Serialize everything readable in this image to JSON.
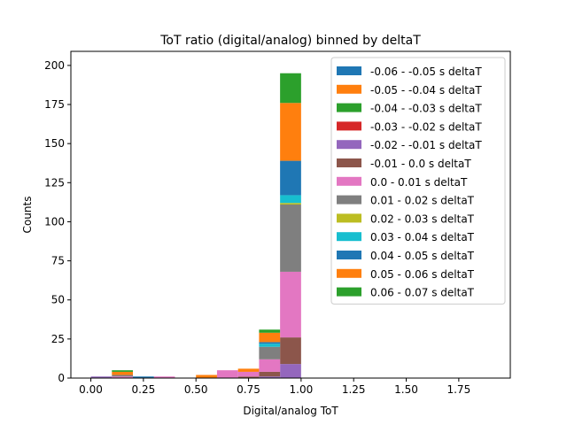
{
  "chart_data": {
    "type": "bar",
    "stacked": true,
    "title": "ToT ratio (digital/analog) binned by deltaT",
    "xlabel": "Digital/analog ToT",
    "ylabel": "Counts",
    "xlim": [
      -0.095,
      1.995
    ],
    "ylim": [
      0,
      209
    ],
    "xticks": [
      0.0,
      0.25,
      0.5,
      0.75,
      1.0,
      1.25,
      1.5,
      1.75
    ],
    "xtick_labels": [
      "0.00",
      "0.25",
      "0.50",
      "0.75",
      "1.00",
      "1.25",
      "1.50",
      "1.75"
    ],
    "yticks": [
      0,
      25,
      50,
      75,
      100,
      125,
      150,
      175,
      200
    ],
    "ytick_labels": [
      "0",
      "25",
      "50",
      "75",
      "100",
      "125",
      "150",
      "175",
      "200"
    ],
    "grid": false,
    "legend_position": "top-right",
    "bin_edges": [
      0.0,
      0.1,
      0.2,
      0.3,
      0.4,
      0.5,
      0.6,
      0.7,
      0.8,
      0.9,
      1.0,
      1.1,
      1.2,
      1.3,
      1.4,
      1.5,
      1.6,
      1.7,
      1.8,
      1.9
    ],
    "series": [
      {
        "name": "-0.06 - -0.05 s deltaT",
        "color": "#1f77b4",
        "values": [
          0,
          0,
          0,
          0,
          0,
          0,
          0,
          0,
          0,
          0,
          0,
          0,
          0,
          0,
          0,
          0,
          0,
          0,
          0
        ]
      },
      {
        "name": "-0.05 - -0.04 s deltaT",
        "color": "#ff7f0e",
        "values": [
          0,
          0,
          0,
          0,
          0,
          0,
          0,
          0,
          0,
          0,
          0,
          0,
          0,
          0,
          0,
          0,
          0,
          0,
          0
        ]
      },
      {
        "name": "-0.04 - -0.03 s deltaT",
        "color": "#2ca02c",
        "values": [
          0,
          0,
          0,
          0,
          0,
          0,
          0,
          0,
          0,
          0,
          0,
          0,
          0,
          0,
          0,
          0,
          0,
          0,
          0
        ]
      },
      {
        "name": "-0.03 - -0.02 s deltaT",
        "color": "#d62728",
        "values": [
          0,
          0,
          0,
          0,
          0,
          0,
          0,
          0,
          0,
          0,
          0,
          0,
          0,
          0,
          0,
          0,
          0,
          0,
          0
        ]
      },
      {
        "name": "-0.02 - -0.01 s deltaT",
        "color": "#9467bd",
        "values": [
          1,
          0,
          0,
          0,
          0,
          0,
          0,
          0,
          1,
          9,
          0,
          0,
          0,
          0,
          0,
          0,
          0,
          0,
          0
        ]
      },
      {
        "name": "-0.01 - 0.0 s deltaT",
        "color": "#8c564b",
        "values": [
          0,
          0,
          0,
          0,
          0,
          0,
          0,
          1,
          3,
          17,
          0,
          0,
          0,
          0,
          0,
          0,
          0,
          0,
          0
        ]
      },
      {
        "name": "0.0 - 0.01 s deltaT",
        "color": "#e377c2",
        "values": [
          0,
          1,
          0,
          1,
          0,
          0,
          5,
          3,
          8,
          42,
          0,
          0,
          0,
          0,
          0,
          0,
          0,
          0,
          0
        ]
      },
      {
        "name": "0.01 - 0.02 s deltaT",
        "color": "#7f7f7f",
        "values": [
          0,
          1,
          0,
          0,
          0,
          0,
          0,
          0,
          8,
          43,
          0,
          0,
          0,
          0,
          0,
          0,
          0,
          0,
          0
        ]
      },
      {
        "name": "0.02 - 0.03 s deltaT",
        "color": "#bcbd22",
        "values": [
          0,
          0,
          0,
          0,
          0,
          0,
          0,
          0,
          0,
          1,
          0,
          0,
          0,
          0,
          0,
          0,
          0,
          0,
          0
        ]
      },
      {
        "name": "0.03 - 0.04 s deltaT",
        "color": "#17becf",
        "values": [
          0,
          0,
          0,
          0,
          0,
          0,
          0,
          0,
          2,
          5,
          0,
          0,
          0,
          0,
          0,
          0,
          0,
          0,
          0
        ]
      },
      {
        "name": "0.04 - 0.05 s deltaT",
        "color": "#1f77b4",
        "values": [
          0,
          0,
          1,
          0,
          0,
          0,
          0,
          0,
          1,
          22,
          0,
          0,
          0,
          0,
          0,
          0,
          0,
          0,
          0
        ]
      },
      {
        "name": "0.05 - 0.06 s deltaT",
        "color": "#ff7f0e",
        "values": [
          0,
          2,
          0,
          0,
          0,
          2,
          0,
          2,
          6,
          37,
          0,
          0,
          0,
          0,
          0,
          0,
          0,
          0,
          0
        ]
      },
      {
        "name": "0.06 - 0.07 s deltaT",
        "color": "#2ca02c",
        "values": [
          0,
          1,
          0,
          0,
          0,
          0,
          0,
          0,
          2,
          19,
          0,
          0,
          0,
          0,
          0,
          0,
          0,
          0,
          0
        ]
      }
    ],
    "extra_top_segment_note": ""
  }
}
